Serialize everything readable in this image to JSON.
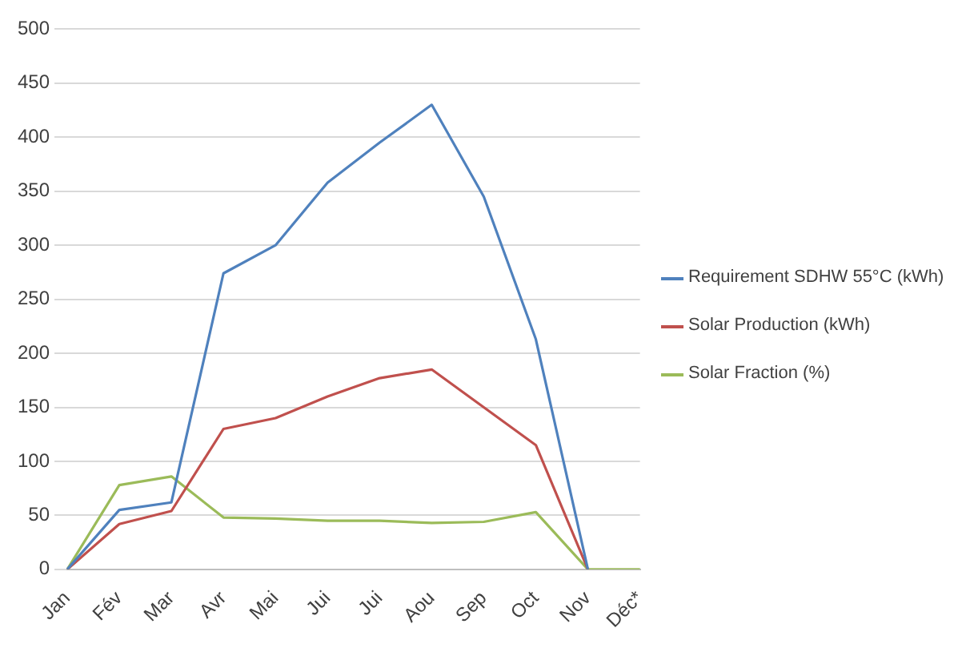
{
  "chart_data": {
    "type": "line",
    "categories": [
      "Jan",
      "Fév",
      "Mar",
      "Avr",
      "Mai",
      "Jui",
      "Jui",
      "Aou",
      "Sep",
      "Oct",
      "Nov",
      "Déc*"
    ],
    "series": [
      {
        "name": "Requirement SDHW 55°C (kWh)",
        "color": "#4f81bd",
        "values": [
          0,
          55,
          62,
          274,
          300,
          358,
          395,
          430,
          345,
          213,
          0,
          null
        ]
      },
      {
        "name": "Solar Production (kWh)",
        "color": "#c0504d",
        "values": [
          0,
          42,
          54,
          130,
          140,
          160,
          177,
          185,
          150,
          115,
          0,
          null
        ]
      },
      {
        "name": "Solar Fraction (%)",
        "color": "#9bbb59",
        "values": [
          0,
          78,
          86,
          48,
          47,
          45,
          45,
          43,
          44,
          53,
          0,
          0
        ]
      }
    ],
    "ylim": [
      0,
      500
    ],
    "yticks": [
      0,
      50,
      100,
      150,
      200,
      250,
      300,
      350,
      400,
      450,
      500
    ],
    "grid": "y",
    "legend": "right",
    "marker": "none",
    "line_style": "solid"
  }
}
